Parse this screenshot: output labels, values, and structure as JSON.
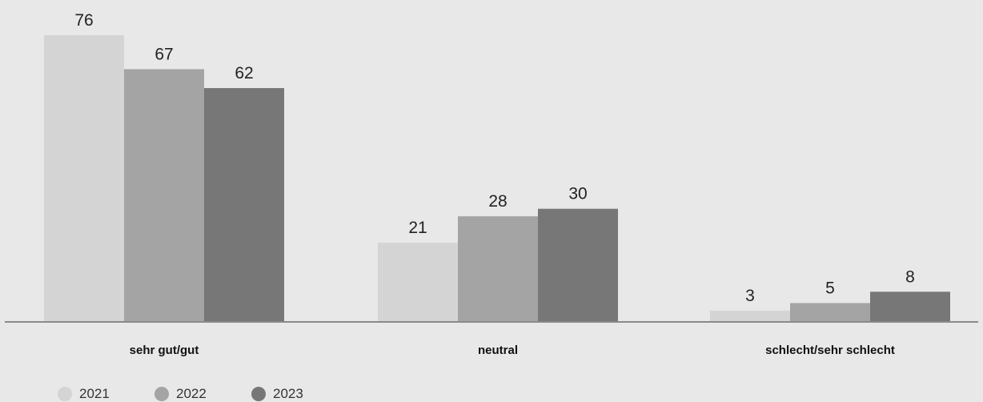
{
  "chart_data": {
    "type": "bar",
    "title": "",
    "xlabel": "",
    "ylabel": "",
    "ylim": [
      0,
      80
    ],
    "grid": false,
    "legend_position": "bottom-left",
    "categories": [
      "sehr gut/gut",
      "neutral",
      "schlecht/sehr schlecht"
    ],
    "series": [
      {
        "name": "2021",
        "color": "#d4d4d4",
        "values": [
          76,
          21,
          3
        ]
      },
      {
        "name": "2022",
        "color": "#a4a4a4",
        "values": [
          67,
          28,
          5
        ]
      },
      {
        "name": "2023",
        "color": "#777777",
        "values": [
          62,
          30,
          8
        ]
      }
    ]
  },
  "colors": {
    "background": "#e8e8e8",
    "axis": "#8a8a8a"
  }
}
